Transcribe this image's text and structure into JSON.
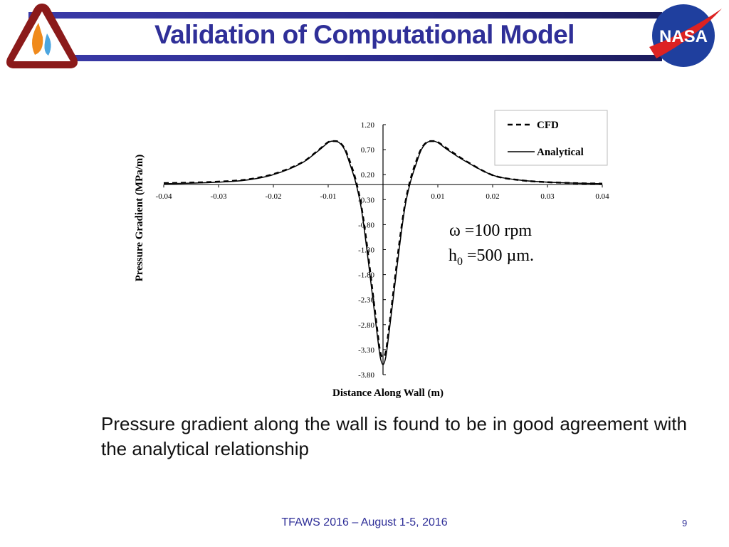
{
  "header": {
    "title": "Validation of Computational Model",
    "left_logo": "Thermal & Fluids Analysis Workshop",
    "right_logo": "NASA"
  },
  "chart_data": {
    "type": "line",
    "xlabel": "Distance Along Wall (m)",
    "ylabel": "Pressure Gradient (MPa/m)",
    "xlim": [
      -0.04,
      0.04
    ],
    "ylim": [
      -3.8,
      1.2
    ],
    "x_ticks": [
      "-0.04",
      "-0.03",
      "-0.02",
      "-0.01",
      "0.01",
      "0.02",
      "0.03",
      "0.04"
    ],
    "x_tick_values": [
      -0.04,
      -0.03,
      -0.02,
      -0.01,
      0.01,
      0.02,
      0.03,
      0.04
    ],
    "y_ticks": [
      "1.20",
      "0.70",
      "0.20",
      "-0.30",
      "-0.80",
      "-1.30",
      "-1.80",
      "-2.30",
      "-2.80",
      "-3.30",
      "-3.80"
    ],
    "y_tick_values": [
      1.2,
      0.7,
      0.2,
      -0.3,
      -0.8,
      -1.3,
      -1.8,
      -2.3,
      -2.8,
      -3.3,
      -3.8
    ],
    "grid": false,
    "legend_position": "top-right",
    "annotation": {
      "line1": "ω =100 rpm",
      "line2_pre": "h",
      "line2_sub": "0",
      "line2_post": " =500 µm."
    },
    "series": [
      {
        "name": "CFD",
        "style": "dashed",
        "color": "#000000",
        "x": [
          -0.04,
          -0.035,
          -0.03,
          -0.025,
          -0.02,
          -0.015,
          -0.012,
          -0.01,
          -0.009,
          -0.008,
          -0.007,
          -0.006,
          -0.005,
          -0.004,
          -0.003,
          -0.002,
          -0.001,
          -0.0005,
          0,
          0.0005,
          0.001,
          0.002,
          0.003,
          0.004,
          0.005,
          0.006,
          0.007,
          0.008,
          0.009,
          0.01,
          0.012,
          0.015,
          0.02,
          0.025,
          0.03,
          0.035,
          0.04
        ],
        "y": [
          0.03,
          0.04,
          0.06,
          0.1,
          0.21,
          0.43,
          0.67,
          0.85,
          0.87,
          0.85,
          0.72,
          0.45,
          0.1,
          -0.4,
          -1.15,
          -2.05,
          -2.95,
          -3.35,
          -3.45,
          -3.35,
          -2.95,
          -2.05,
          -1.15,
          -0.4,
          0.1,
          0.45,
          0.72,
          0.85,
          0.87,
          0.85,
          0.7,
          0.48,
          0.19,
          0.09,
          0.05,
          0.03,
          0.02
        ]
      },
      {
        "name": "Analytical",
        "style": "solid",
        "color": "#000000",
        "x": [
          -0.04,
          -0.035,
          -0.03,
          -0.025,
          -0.02,
          -0.015,
          -0.012,
          -0.01,
          -0.009,
          -0.008,
          -0.007,
          -0.006,
          -0.005,
          -0.004,
          -0.003,
          -0.002,
          -0.001,
          -0.0005,
          0,
          0.0005,
          0.001,
          0.002,
          0.003,
          0.004,
          0.005,
          0.006,
          0.007,
          0.008,
          0.009,
          0.01,
          0.012,
          0.015,
          0.02,
          0.025,
          0.03,
          0.035,
          0.04
        ],
        "y": [
          0.02,
          0.03,
          0.05,
          0.09,
          0.2,
          0.42,
          0.66,
          0.84,
          0.87,
          0.84,
          0.7,
          0.4,
          0.05,
          -0.45,
          -1.25,
          -2.15,
          -3.05,
          -3.45,
          -3.6,
          -3.45,
          -3.05,
          -2.15,
          -1.25,
          -0.45,
          0.05,
          0.4,
          0.7,
          0.84,
          0.87,
          0.84,
          0.68,
          0.47,
          0.19,
          0.09,
          0.05,
          0.03,
          0.02
        ]
      }
    ]
  },
  "body": {
    "text": "Pressure gradient along the wall is found to be in good agreement with the analytical relationship"
  },
  "footer": {
    "text": "TFAWS 2016 – August 1-5, 2016",
    "page_number": "9"
  }
}
